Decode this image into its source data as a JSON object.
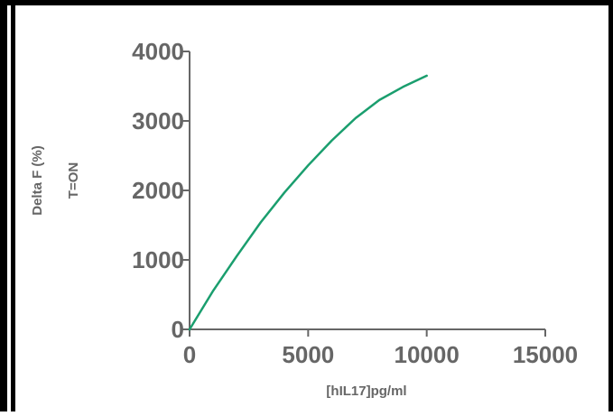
{
  "chart_data": {
    "type": "line",
    "title": "",
    "xlabel": "[hIL17]pg/ml",
    "ylabel": "Delta F (%)",
    "ylabel_secondary": "T=ON",
    "xlim": [
      0,
      15000
    ],
    "ylim": [
      0,
      4000
    ],
    "x_ticks": [
      "0",
      "5000",
      "10000",
      "15000"
    ],
    "y_ticks": [
      "0",
      "1000",
      "2000",
      "3000",
      "4000"
    ],
    "grid": false,
    "legend": "none",
    "series": [
      {
        "color": "#1a9e6e",
        "x": [
          0,
          1000,
          2000,
          3000,
          4000,
          5000,
          6000,
          7000,
          8000,
          9000,
          10000
        ],
        "y": [
          0,
          560,
          1060,
          1540,
          1970,
          2360,
          2720,
          3040,
          3300,
          3490,
          3650
        ]
      }
    ]
  },
  "colors": {
    "axis": "#666666",
    "line": "#1a9e6e",
    "border": "#000000"
  }
}
